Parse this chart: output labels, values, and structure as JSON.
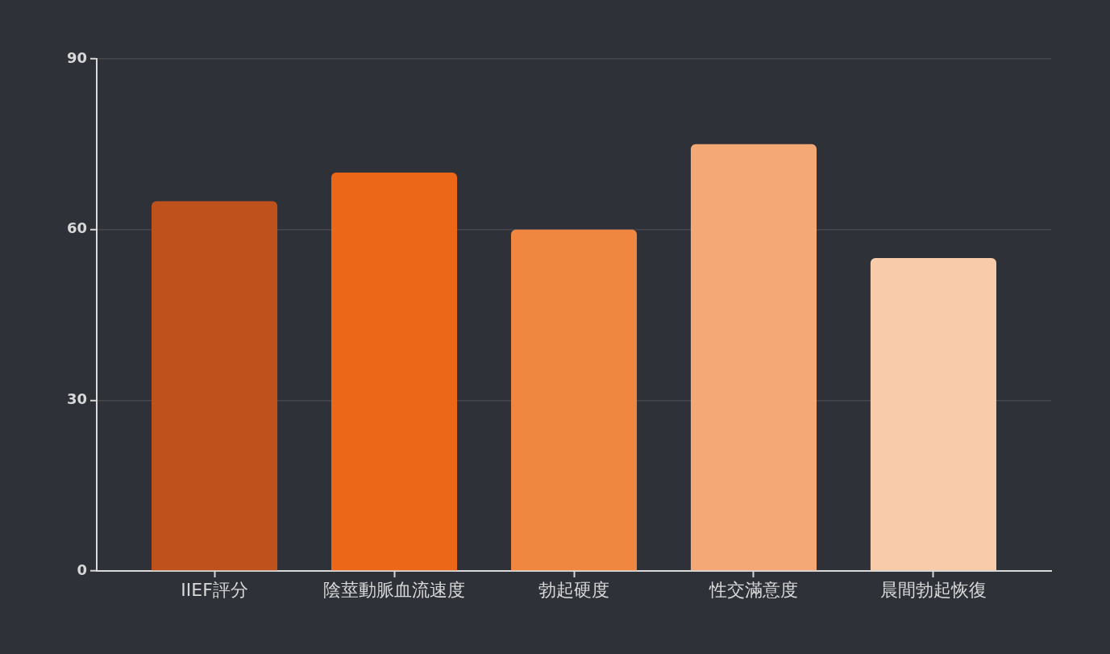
{
  "chart_data": {
    "type": "bar",
    "categories": [
      "IIEF評分",
      "陰莖動脈血流速度",
      "勃起硬度",
      "性交滿意度",
      "晨間勃起恢復"
    ],
    "values": [
      65,
      70,
      60,
      75,
      55
    ],
    "colors": [
      "#bf511d",
      "#ec6718",
      "#f08741",
      "#f4a876",
      "#f8cbaa"
    ],
    "ylim": [
      0,
      90
    ],
    "yticks": [
      0,
      30,
      60,
      90
    ],
    "grid": "y"
  }
}
